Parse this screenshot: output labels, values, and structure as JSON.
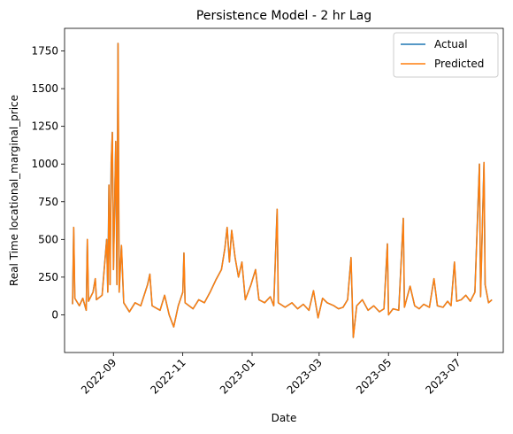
{
  "chart_data": {
    "type": "line",
    "title": "Persistence Model - 2 hr Lag",
    "xlabel": "Date",
    "ylabel": "Real Time locational_marginal_price",
    "x_range": [
      "2022-07-20",
      "2023-08-10"
    ],
    "ylim": [
      -250,
      1900
    ],
    "x_ticks": [
      {
        "date": "2022-09-01",
        "label": "2022-09"
      },
      {
        "date": "2022-11-01",
        "label": "2022-11"
      },
      {
        "date": "2023-01-01",
        "label": "2023-01"
      },
      {
        "date": "2023-03-01",
        "label": "2023-03"
      },
      {
        "date": "2023-05-01",
        "label": "2023-05"
      },
      {
        "date": "2023-07-01",
        "label": "2023-07"
      }
    ],
    "y_ticks": [
      0,
      250,
      500,
      750,
      1000,
      1250,
      1500,
      1750
    ],
    "legend": "top-right",
    "grid": false,
    "series": [
      {
        "name": "Actual",
        "color": "#1f77b4",
        "points": [
          [
            "2022-07-27",
            70
          ],
          [
            "2022-07-28",
            580
          ],
          [
            "2022-07-29",
            110
          ],
          [
            "2022-08-02",
            60
          ],
          [
            "2022-08-05",
            110
          ],
          [
            "2022-08-08",
            30
          ],
          [
            "2022-08-09",
            500
          ],
          [
            "2022-08-10",
            90
          ],
          [
            "2022-08-14",
            150
          ],
          [
            "2022-08-16",
            240
          ],
          [
            "2022-08-17",
            100
          ],
          [
            "2022-08-22",
            130
          ],
          [
            "2022-08-26",
            500
          ],
          [
            "2022-08-27",
            150
          ],
          [
            "2022-08-28",
            860
          ],
          [
            "2022-08-29",
            200
          ],
          [
            "2022-08-30",
            1010
          ],
          [
            "2022-08-31",
            1210
          ],
          [
            "2022-09-01",
            300
          ],
          [
            "2022-09-03",
            1150
          ],
          [
            "2022-09-04",
            200
          ],
          [
            "2022-09-05",
            1800
          ],
          [
            "2022-09-06",
            150
          ],
          [
            "2022-09-08",
            460
          ],
          [
            "2022-09-10",
            80
          ],
          [
            "2022-09-15",
            20
          ],
          [
            "2022-09-20",
            80
          ],
          [
            "2022-09-25",
            60
          ],
          [
            "2022-10-01",
            200
          ],
          [
            "2022-10-03",
            270
          ],
          [
            "2022-10-05",
            60
          ],
          [
            "2022-10-12",
            30
          ],
          [
            "2022-10-16",
            130
          ],
          [
            "2022-10-20",
            0
          ],
          [
            "2022-10-24",
            -80
          ],
          [
            "2022-10-28",
            60
          ],
          [
            "2022-11-01",
            150
          ],
          [
            "2022-11-02",
            410
          ],
          [
            "2022-11-03",
            80
          ],
          [
            "2022-11-10",
            40
          ],
          [
            "2022-11-15",
            100
          ],
          [
            "2022-11-20",
            80
          ],
          [
            "2022-11-25",
            150
          ],
          [
            "2022-11-30",
            230
          ],
          [
            "2022-12-05",
            300
          ],
          [
            "2022-12-08",
            440
          ],
          [
            "2022-12-10",
            580
          ],
          [
            "2022-12-12",
            350
          ],
          [
            "2022-12-14",
            560
          ],
          [
            "2022-12-17",
            380
          ],
          [
            "2022-12-20",
            250
          ],
          [
            "2022-12-23",
            350
          ],
          [
            "2022-12-26",
            100
          ],
          [
            "2022-12-31",
            200
          ],
          [
            "2023-01-04",
            300
          ],
          [
            "2023-01-07",
            100
          ],
          [
            "2023-01-12",
            80
          ],
          [
            "2023-01-17",
            120
          ],
          [
            "2023-01-20",
            60
          ],
          [
            "2023-01-23",
            700
          ],
          [
            "2023-01-24",
            80
          ],
          [
            "2023-01-30",
            50
          ],
          [
            "2023-02-05",
            80
          ],
          [
            "2023-02-10",
            40
          ],
          [
            "2023-02-15",
            70
          ],
          [
            "2023-02-20",
            30
          ],
          [
            "2023-02-24",
            160
          ],
          [
            "2023-02-28",
            -20
          ],
          [
            "2023-03-04",
            110
          ],
          [
            "2023-03-08",
            80
          ],
          [
            "2023-03-14",
            60
          ],
          [
            "2023-03-18",
            40
          ],
          [
            "2023-03-22",
            50
          ],
          [
            "2023-03-26",
            100
          ],
          [
            "2023-03-29",
            380
          ],
          [
            "2023-03-31",
            -150
          ],
          [
            "2023-04-03",
            60
          ],
          [
            "2023-04-08",
            100
          ],
          [
            "2023-04-13",
            30
          ],
          [
            "2023-04-18",
            60
          ],
          [
            "2023-04-23",
            20
          ],
          [
            "2023-04-27",
            40
          ],
          [
            "2023-04-30",
            470
          ],
          [
            "2023-05-01",
            0
          ],
          [
            "2023-05-05",
            40
          ],
          [
            "2023-05-10",
            30
          ],
          [
            "2023-05-14",
            640
          ],
          [
            "2023-05-15",
            50
          ],
          [
            "2023-05-20",
            190
          ],
          [
            "2023-05-24",
            60
          ],
          [
            "2023-05-28",
            40
          ],
          [
            "2023-06-01",
            70
          ],
          [
            "2023-06-06",
            50
          ],
          [
            "2023-06-10",
            240
          ],
          [
            "2023-06-13",
            60
          ],
          [
            "2023-06-18",
            50
          ],
          [
            "2023-06-22",
            90
          ],
          [
            "2023-06-25",
            60
          ],
          [
            "2023-06-28",
            350
          ],
          [
            "2023-06-30",
            90
          ],
          [
            "2023-07-04",
            100
          ],
          [
            "2023-07-08",
            130
          ],
          [
            "2023-07-12",
            90
          ],
          [
            "2023-07-16",
            150
          ],
          [
            "2023-07-20",
            1000
          ],
          [
            "2023-07-21",
            120
          ],
          [
            "2023-07-24",
            1010
          ],
          [
            "2023-07-25",
            200
          ],
          [
            "2023-07-28",
            80
          ],
          [
            "2023-07-31",
            100
          ]
        ]
      },
      {
        "name": "Predicted",
        "color": "#ff7f0e",
        "lag_days": 0.0833
      }
    ]
  }
}
